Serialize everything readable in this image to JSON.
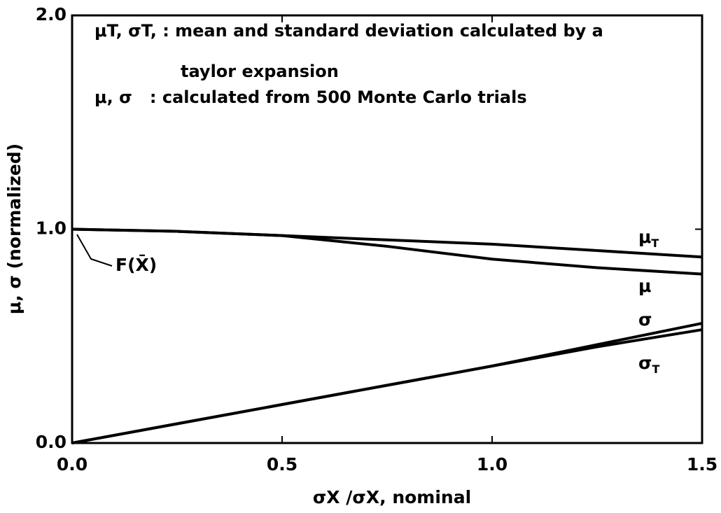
{
  "chart_data": {
    "type": "line",
    "xlabel": "σX /σX, nominal",
    "ylabel": "μ, σ (normalized)",
    "annotations": [
      "μT, σT, : mean and standard deviation calculated by a",
      "taylor expansion",
      "μ, σ   : calculated from 500 Monte Carlo trials",
      "F(X̄)"
    ],
    "x": [
      0,
      0.25,
      0.5,
      0.75,
      1.0,
      1.25,
      1.5
    ],
    "series": [
      {
        "name": "μT",
        "color": "#000000",
        "values": [
          1.0,
          0.99,
          0.97,
          0.95,
          0.93,
          0.9,
          0.87
        ]
      },
      {
        "name": "μ",
        "color": "#000000",
        "values": [
          1.0,
          0.99,
          0.97,
          0.92,
          0.86,
          0.82,
          0.79
        ]
      },
      {
        "name": "σ",
        "color": "#000000",
        "values": [
          0,
          0.09,
          0.18,
          0.27,
          0.36,
          0.46,
          0.56
        ]
      },
      {
        "name": "σT",
        "color": "#000000",
        "values": [
          0,
          0.09,
          0.18,
          0.27,
          0.36,
          0.45,
          0.53
        ]
      }
    ],
    "xlim": [
      0,
      1.5
    ],
    "xticks": [
      {
        "value": 0,
        "label": "0.0"
      },
      {
        "value": 0.5,
        "label": "0.5"
      },
      {
        "value": 1.0,
        "label": "1.0"
      },
      {
        "value": 1.5,
        "label": "1.5"
      }
    ],
    "ylim": [
      0,
      2.0
    ],
    "yticks": [
      {
        "value": 0,
        "label": "0.0"
      },
      {
        "value": 1.0,
        "label": "1.0"
      },
      {
        "value": 2.0,
        "label": "2.0"
      }
    ]
  }
}
